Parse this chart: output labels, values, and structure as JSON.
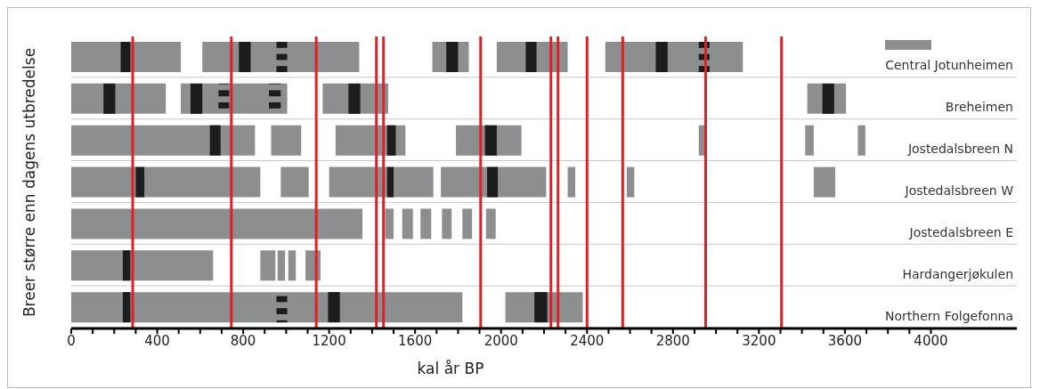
{
  "chart_data": {
    "type": "bar",
    "orientation": "horizontal",
    "xlabel": "kal år BP",
    "ylabel": "Breer større enn dagens utbredelse",
    "categories": [
      "Central Jotunheimen",
      "Breheimen",
      "Jostedalsbreen N",
      "Jostedalsbreen W",
      "Jostedalsbreen E",
      "Hardangerjøkulen",
      "Northern Folgefonna"
    ],
    "series": [
      {
        "color": "#8d8e90",
        "base": [
          0,
          0,
          0,
          0,
          0,
          0,
          0
        ],
        "values": [
          510,
          440,
          855,
          880,
          1355,
          660,
          1820
        ]
      },
      {
        "color": "#8d8e90",
        "base": [
          610,
          510,
          930,
          975,
          1460,
          880,
          2020
        ],
        "values": [
          730,
          495,
          140,
          130,
          40,
          70,
          360
        ]
      },
      {
        "color": "#8d8e90",
        "base": [
          1680,
          1170,
          1230,
          1200,
          1540,
          960,
          null
        ],
        "values": [
          170,
          305,
          325,
          485,
          50,
          35,
          null
        ]
      },
      {
        "color": "#8d8e90",
        "base": [
          1980,
          3425,
          1790,
          1720,
          1625,
          1010,
          null
        ],
        "values": [
          330,
          180,
          305,
          490,
          50,
          35,
          null
        ]
      },
      {
        "color": "#8d8e90",
        "base": [
          2485,
          null,
          2920,
          2310,
          1725,
          1090,
          null
        ],
        "values": [
          640,
          null,
          30,
          35,
          45,
          70,
          null
        ]
      },
      {
        "color": "#8d8e90",
        "base": [
          null,
          null,
          3415,
          2585,
          1820,
          null,
          null
        ],
        "values": [
          null,
          null,
          40,
          35,
          45,
          null,
          null
        ]
      },
      {
        "color": "#8d8e90",
        "base": [
          null,
          null,
          3660,
          3455,
          1930,
          null,
          null
        ],
        "values": [
          null,
          null,
          35,
          100,
          45,
          null,
          null
        ]
      },
      {
        "color": "#1c1c1c",
        "base": [
          230,
          150,
          645,
          300,
          null,
          240,
          240
        ],
        "values": [
          45,
          55,
          50,
          40,
          null,
          35,
          35
        ]
      },
      {
        "color": "#1c1c1c",
        "base": [
          780,
          555,
          1470,
          1470,
          null,
          null,
          1195
        ],
        "values": [
          55,
          55,
          40,
          30,
          null,
          null,
          55
        ]
      },
      {
        "color": "#1c1c1c",
        "base": [
          1745,
          1290,
          1925,
          1935,
          null,
          null,
          2155
        ],
        "values": [
          55,
          55,
          55,
          50,
          null,
          null,
          60
        ]
      },
      {
        "color": "#1c1c1c",
        "base": [
          2115,
          3495,
          null,
          null,
          null,
          null,
          null
        ],
        "values": [
          50,
          55,
          null,
          null,
          null,
          null,
          null
        ]
      },
      {
        "color": "#1c1c1c",
        "base": [
          2720,
          null,
          null,
          null,
          null,
          null,
          null
        ],
        "values": [
          55,
          null,
          null,
          null,
          null,
          null,
          null
        ]
      },
      {
        "color": "#1c1c1c",
        "line_style": "dashed",
        "base": [
          955,
          685,
          null,
          null,
          null,
          null,
          955
        ],
        "values": [
          50,
          50,
          null,
          null,
          null,
          null,
          50
        ]
      },
      {
        "color": "#1c1c1c",
        "line_style": "dashed",
        "base": [
          2920,
          920,
          null,
          null,
          null,
          null,
          null
        ],
        "values": [
          50,
          55,
          null,
          null,
          null,
          null,
          null
        ]
      }
    ],
    "xlim": [
      0,
      4400
    ],
    "xticks": [
      0,
      {
        "value": 100,
        "label": null
      },
      {
        "value": 200,
        "label": null
      },
      {
        "value": 300,
        "label": null
      },
      400,
      {
        "value": 500,
        "label": null
      },
      {
        "value": 600,
        "label": null
      },
      {
        "value": 700,
        "label": null
      },
      800,
      {
        "value": 900,
        "label": null
      },
      {
        "value": 1000,
        "label": null
      },
      {
        "value": 1100,
        "label": null
      },
      1200,
      {
        "value": 1300,
        "label": null
      },
      {
        "value": 1400,
        "label": null
      },
      {
        "value": 1500,
        "label": null
      },
      1600,
      {
        "value": 1700,
        "label": null
      },
      {
        "value": 1800,
        "label": null
      },
      {
        "value": 1900,
        "label": null
      },
      2000,
      {
        "value": 2100,
        "label": null
      },
      {
        "value": 2200,
        "label": null
      },
      {
        "value": 2300,
        "label": null
      },
      2400,
      {
        "value": 2500,
        "label": null
      },
      {
        "value": 2600,
        "label": null
      },
      {
        "value": 2700,
        "label": null
      },
      2800,
      {
        "value": 2900,
        "label": null
      },
      {
        "value": 3000,
        "label": null
      },
      {
        "value": 3100,
        "label": null
      },
      3200,
      {
        "value": 3300,
        "label": null
      },
      {
        "value": 3400,
        "label": null
      },
      {
        "value": 3500,
        "label": null
      },
      3600,
      {
        "value": 3700,
        "label": null
      },
      {
        "value": 3800,
        "label": null
      },
      {
        "value": 3900,
        "label": null
      },
      4000
    ],
    "ref_lines": [
      {
        "axis": "x",
        "value": 286,
        "color": "#e02027"
      },
      {
        "axis": "x",
        "value": 745,
        "color": "#e02027"
      },
      {
        "axis": "x",
        "value": 1140,
        "color": "#e02027"
      },
      {
        "axis": "x",
        "value": 1420,
        "color": "#e02027"
      },
      {
        "axis": "x",
        "value": 1453,
        "color": "#e02027"
      },
      {
        "axis": "x",
        "value": 1905,
        "color": "#e02027"
      },
      {
        "axis": "x",
        "value": 2232,
        "color": "#e02027"
      },
      {
        "axis": "x",
        "value": 2265,
        "color": "#e02027"
      },
      {
        "axis": "x",
        "value": 2400,
        "color": "#e02027"
      },
      {
        "axis": "x",
        "value": 2566,
        "color": "#e02027"
      },
      {
        "axis": "x",
        "value": 2952,
        "color": "#e02027"
      },
      {
        "axis": "x",
        "value": 3305,
        "color": "#e02027"
      }
    ],
    "legend": false
  }
}
